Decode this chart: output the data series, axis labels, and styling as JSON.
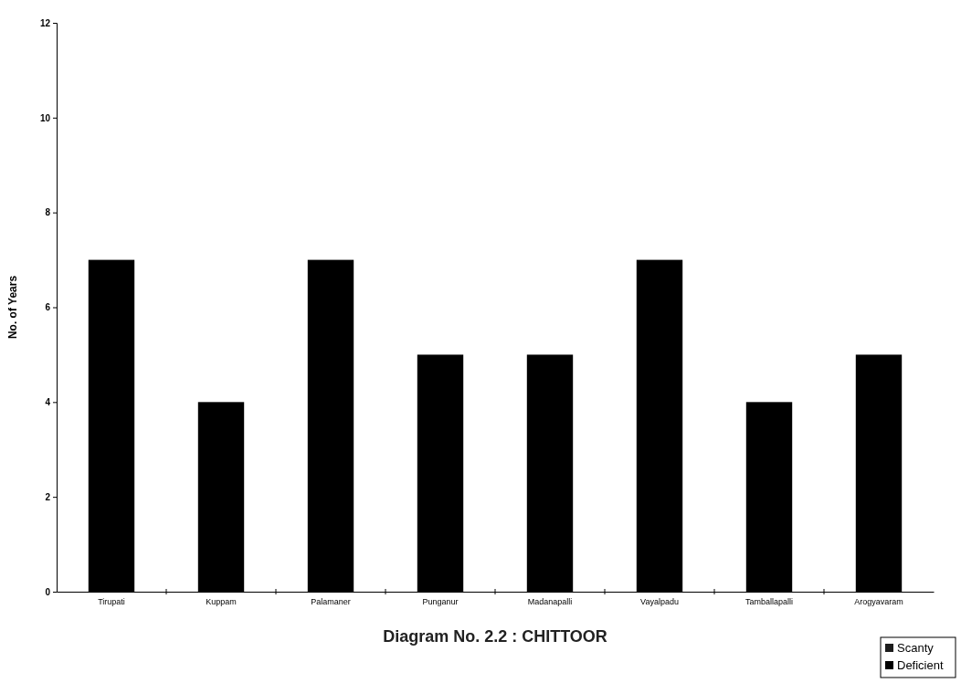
{
  "chart_data": {
    "type": "bar",
    "xlabel": "Diagram No. 2.2 : CHITTOOR",
    "ylabel": "No. of Years",
    "categories": [
      "Tirupati",
      "Kuppam",
      "Palamaner",
      "Punganur",
      "Madanapalli",
      "Vayalpadu",
      "Tamballapalli",
      "Arogyavaram"
    ],
    "series": [
      {
        "name": "Scanty",
        "color": "#1c1c1c",
        "values": [
          null,
          null,
          null,
          null,
          null,
          null,
          null,
          null
        ]
      },
      {
        "name": "Deficient",
        "color": "#000000",
        "values": [
          7,
          4,
          7,
          5,
          5,
          7,
          4,
          5
        ]
      }
    ],
    "ylim": [
      0,
      12
    ],
    "yticks": [
      0,
      2,
      4,
      6,
      8,
      10,
      12
    ],
    "grid": false,
    "legend": "bottom right"
  }
}
